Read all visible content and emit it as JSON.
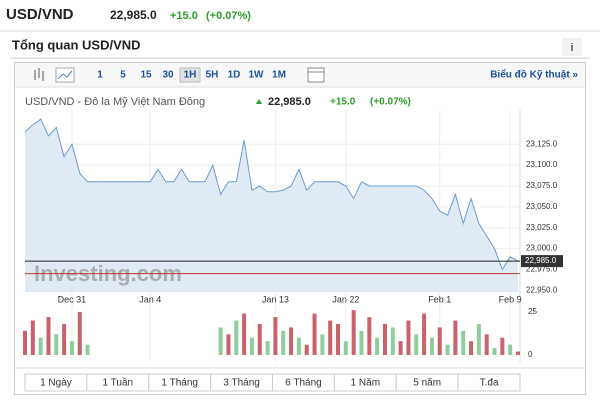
{
  "header": {
    "symbol": "USD/VND",
    "price": "22,985.0",
    "change": "+15.0",
    "change_pct": "(+0.07%)"
  },
  "section": {
    "title": "Tổng quan USD/VND",
    "info": "i"
  },
  "toolbar": {
    "intervals": [
      "1",
      "5",
      "15",
      "30",
      "1H",
      "5H",
      "1D",
      "1W",
      "1M"
    ],
    "selected": "1H",
    "link": "Biểu đồ Kỹ thuật »"
  },
  "chart_header": {
    "name": "USD/VND - Đô la Mỹ Việt Nam Đông",
    "price": "22,985.0",
    "change": "+15.0",
    "change_pct": "(+0.07%)"
  },
  "chart_data": [
    {
      "type": "area",
      "watermark": "Investing.com",
      "color": "#6a9ccf",
      "fill": "#dfeaf5",
      "categories": [
        null,
        null,
        null,
        null,
        null,
        null,
        "Dec 31",
        null,
        null,
        null,
        null,
        null,
        null,
        null,
        null,
        null,
        "Jan 4",
        null,
        null,
        null,
        null,
        null,
        null,
        null,
        null,
        null,
        null,
        null,
        null,
        null,
        null,
        null,
        "Jan 13",
        null,
        null,
        null,
        null,
        null,
        null,
        null,
        null,
        "Jan 22",
        null,
        null,
        null,
        null,
        null,
        null,
        null,
        null,
        null,
        null,
        null,
        "Feb 1",
        null,
        null,
        null,
        null,
        null,
        null,
        null,
        null,
        "Feb 9",
        null
      ],
      "values": [
        23140,
        23148,
        23155,
        23135,
        23145,
        23110,
        23125,
        23090,
        23080,
        23080,
        23080,
        23080,
        23080,
        23080,
        23080,
        23080,
        23080,
        23095,
        23080,
        23080,
        23095,
        23080,
        23080,
        23080,
        23100,
        23065,
        23080,
        23080,
        23130,
        23070,
        23075,
        23068,
        23068,
        23070,
        23075,
        23095,
        23070,
        23080,
        23080,
        23080,
        23080,
        23075,
        23060,
        23080,
        23075,
        23075,
        23075,
        23075,
        23075,
        23075,
        23075,
        23070,
        23060,
        23045,
        23040,
        23065,
        23030,
        23060,
        23030,
        23015,
        23000,
        22975,
        22990,
        22985
      ],
      "ylim": [
        22948,
        23166
      ],
      "yticks": [
        {
          "value": 22950,
          "label": "22,950.0"
        },
        {
          "value": 22975,
          "label": "22,975.0"
        },
        {
          "value": 23000,
          "label": "23,000.0"
        },
        {
          "value": 23025,
          "label": "23,025.0"
        },
        {
          "value": 23050,
          "label": "23,050.0"
        },
        {
          "value": 23075,
          "label": "23,075.0"
        },
        {
          "value": 23100,
          "label": "23,100.0"
        },
        {
          "value": 23125,
          "label": "23,125.0"
        }
      ],
      "last_value": {
        "value": 22985,
        "label": "22,985.0"
      },
      "previous_close": 22970,
      "grid": true
    },
    {
      "type": "bar",
      "values": [
        14,
        20,
        10,
        22,
        12,
        18,
        8,
        25,
        6,
        null,
        null,
        null,
        null,
        null,
        null,
        null,
        null,
        null,
        null,
        null,
        null,
        null,
        null,
        null,
        null,
        16,
        12,
        20,
        24,
        10,
        18,
        8,
        22,
        14,
        16,
        10,
        6,
        24,
        12,
        20,
        18,
        8,
        26,
        14,
        22,
        10,
        18,
        16,
        8,
        20,
        12,
        24,
        10,
        16,
        6,
        20,
        14,
        8,
        18,
        12,
        4,
        10,
        6,
        2
      ],
      "colors": [
        "#c9636b",
        "#c9636b",
        "#8fce9a",
        "#c9636b",
        "#8fce9a",
        "#c9636b",
        "#8fce9a",
        "#c9636b",
        "#8fce9a",
        null,
        null,
        null,
        null,
        null,
        null,
        null,
        null,
        null,
        null,
        null,
        null,
        null,
        null,
        null,
        null,
        "#8fce9a",
        "#c9636b",
        "#8fce9a",
        "#c9636b",
        "#8fce9a",
        "#c9636b",
        "#8fce9a",
        "#c9636b",
        "#8fce9a",
        "#c9636b",
        "#8fce9a",
        "#c9636b",
        "#c9636b",
        "#8fce9a",
        "#c9636b",
        "#c9636b",
        "#8fce9a",
        "#c9636b",
        "#8fce9a",
        "#c9636b",
        "#8fce9a",
        "#c9636b",
        "#8fce9a",
        "#c9636b",
        "#c9636b",
        "#8fce9a",
        "#c9636b",
        "#8fce9a",
        "#c9636b",
        "#8fce9a",
        "#c9636b",
        "#8fce9a",
        "#c9636b",
        "#8fce9a",
        "#c9636b",
        "#8fce9a",
        "#c9636b",
        "#8fce9a",
        "#c9636b"
      ],
      "ylim": [
        0,
        29
      ],
      "yticks": [
        0,
        25
      ]
    }
  ],
  "ranges": [
    "1 Ngày",
    "1 Tuần",
    "1 Tháng",
    "3 Tháng",
    "6 Tháng",
    "1 Năm",
    "5 năm",
    "T.đa"
  ]
}
